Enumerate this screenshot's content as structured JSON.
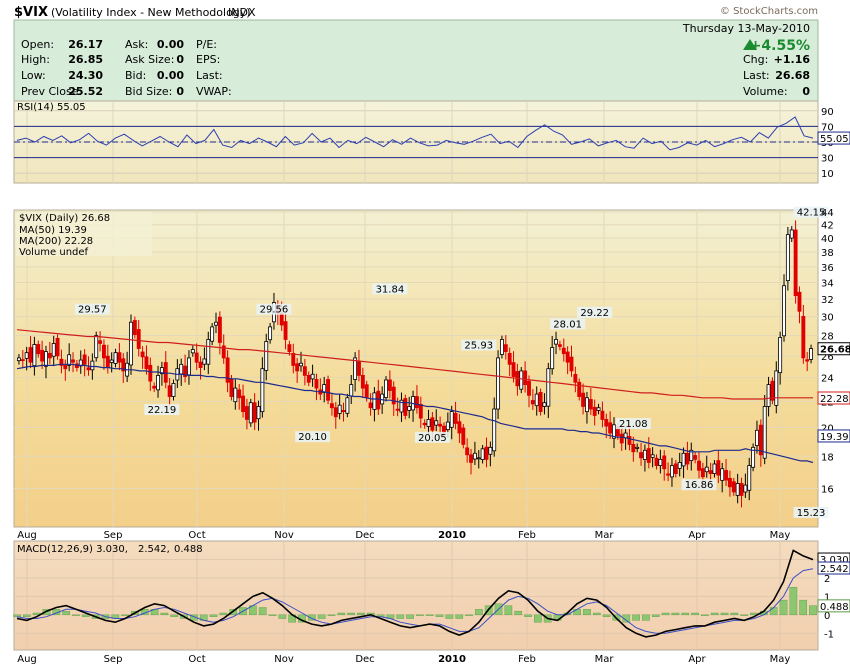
{
  "header": {
    "symbol": "$VIX",
    "description": "(Volatility Index - New Methodology)",
    "exchange": "INDX",
    "brand": "© StockCharts.com",
    "date": "Thursday  13-May-2010",
    "change_pct": "+4.55%"
  },
  "quote": {
    "rows": [
      {
        "l1": "Open:",
        "v1": "26.17",
        "l2": "Ask:",
        "v2": "0.00",
        "l3": "P/E:",
        "v3": ""
      },
      {
        "l1": "High:",
        "v1": "26.85",
        "l2": "Ask Size:",
        "v2": "0",
        "l3": "EPS:",
        "v3": ""
      },
      {
        "l1": "Low:",
        "v1": "24.30",
        "l2": "Bid:",
        "v2": "0.00",
        "l3": "Last:",
        "v3": ""
      },
      {
        "l1": "Prev Close:",
        "v1": "25.52",
        "l2": "Bid Size:",
        "v2": "0",
        "l3": "VWAP:",
        "v3": ""
      }
    ],
    "right": [
      {
        "l": "Chg:",
        "v": "+1.16"
      },
      {
        "l": "Last:",
        "v": "26.68"
      },
      {
        "l": "Volume:",
        "v": "0"
      }
    ]
  },
  "chart_data": {
    "type": "candlestick",
    "months": [
      "Aug",
      "Sep",
      "Oct",
      "Nov",
      "Dec",
      "2010",
      "Feb",
      "Mar",
      "Apr",
      "May"
    ],
    "rsi": {
      "label": "RSI(14) 55.05",
      "last": "55.05",
      "ticks": [
        "90",
        "70",
        "50",
        "30",
        "10"
      ],
      "tick_values": [
        90,
        70,
        50,
        30,
        10
      ],
      "overbought": 70,
      "oversold": 30,
      "ylim": [
        0,
        100
      ],
      "values": [
        52,
        55,
        50,
        57,
        52,
        58,
        49,
        53,
        61,
        51,
        46,
        55,
        60,
        52,
        45,
        51,
        57,
        50,
        44,
        59,
        48,
        52,
        66,
        46,
        43,
        52,
        48,
        55,
        50,
        44,
        57,
        46,
        49,
        61,
        50,
        55,
        43,
        52,
        48,
        56,
        50,
        44,
        53,
        47,
        55,
        49,
        45,
        46,
        52,
        49,
        47,
        51,
        56,
        60,
        48,
        51,
        43,
        57,
        65,
        72,
        64,
        59,
        47,
        50,
        54,
        45,
        49,
        52,
        44,
        42,
        55,
        48,
        51,
        40,
        43,
        49,
        46,
        52,
        44,
        48,
        53,
        56,
        50,
        62,
        55,
        69,
        74,
        82,
        58,
        55
      ]
    },
    "price": {
      "label": "$VIX (Daily) 26.68",
      "ma50_label": "MA(50) 19.39",
      "ma200_label": "MA(200) 22.28",
      "volume_label": "Volume undef",
      "last": "26.68",
      "ma50_last": "19.39",
      "ma200_last": "22.28",
      "ticks": [
        "44",
        "42",
        "40",
        "38",
        "36",
        "34",
        "32",
        "30",
        "28",
        "26",
        "24",
        "22",
        "20",
        "18",
        "16"
      ],
      "tick_values": [
        44,
        42,
        40,
        38,
        36,
        34,
        32,
        30,
        28,
        26,
        24,
        22,
        20,
        18,
        16
      ],
      "ylim": [
        14,
        44
      ],
      "log": true,
      "close": [
        25.8,
        25.6,
        26.3,
        25.4,
        27.1,
        26.2,
        25.5,
        26.4,
        25.8,
        27.2,
        26.0,
        25.1,
        24.8,
        26.1,
        25.4,
        24.9,
        25.6,
        25.2,
        24.7,
        25.5,
        28.0,
        27.2,
        25.8,
        24.9,
        25.6,
        26.3,
        25.4,
        24.6,
        25.3,
        29.4,
        28.1,
        26.7,
        25.9,
        24.8,
        23.7,
        23.1,
        24.2,
        24.9,
        23.6,
        22.4,
        23.5,
        24.8,
        25.2,
        24.1,
        25.8,
        26.6,
        25.4,
        24.9,
        25.7,
        27.6,
        28.9,
        29.4,
        27.3,
        25.8,
        23.6,
        22.4,
        23.1,
        22.3,
        21.2,
        20.6,
        21.9,
        20.4,
        21.6,
        24.8,
        27.4,
        28.9,
        31.6,
        30.4,
        29.1,
        27.6,
        26.4,
        25.1,
        24.6,
        25.3,
        24.2,
        23.6,
        24.3,
        23.1,
        22.6,
        23.4,
        22.1,
        21.5,
        20.8,
        21.7,
        21.2,
        22.3,
        23.4,
        25.8,
        24.2,
        23.1,
        22.3,
        21.5,
        22.7,
        21.4,
        22.6,
        23.8,
        22.9,
        21.8,
        21.3,
        22.1,
        20.9,
        21.6,
        22.4,
        21.5,
        20.7,
        20.2,
        20.6,
        19.8,
        20.5,
        20.1,
        19.6,
        20.4,
        21.2,
        20.3,
        19.6,
        18.8,
        18.1,
        17.6,
        18.2,
        17.9,
        18.5,
        17.8,
        18.6,
        21.4,
        25.8,
        27.6,
        26.4,
        25.2,
        24.1,
        23.3,
        24.6,
        23.4,
        22.5,
        21.8,
        22.6,
        21.2,
        21.9,
        24.8,
        26.8,
        27.6,
        26.9,
        26.2,
        25.4,
        24.6,
        23.6,
        22.4,
        21.6,
        22.3,
        21.4,
        20.9,
        21.5,
        20.6,
        20.1,
        19.6,
        20.2,
        19.4,
        18.9,
        19.6,
        18.8,
        18.3,
        18.6,
        17.9,
        18.4,
        17.6,
        18.1,
        17.4,
        17.8,
        17.2,
        16.8,
        17.4,
        16.9,
        17.6,
        18.2,
        17.5,
        18.4,
        17.8,
        17.1,
        16.7,
        17.3,
        16.9,
        17.5,
        16.8,
        17.2,
        16.5,
        16.1,
        15.8,
        16.3,
        15.6,
        16.2,
        17.4,
        18.6,
        19.8,
        18.1,
        21.6,
        23.4,
        22.1,
        24.6,
        27.8,
        33.6,
        40.5,
        41.2,
        32.4,
        30.6,
        25.8,
        25.5,
        26.7
      ],
      "ma50": [
        24.8,
        24.9,
        25.0,
        25.0,
        25.1,
        25.1,
        25.1,
        25.2,
        25.2,
        25.2,
        25.1,
        25.1,
        25.0,
        25.0,
        24.9,
        24.9,
        24.8,
        24.8,
        24.7,
        24.7,
        24.6,
        24.6,
        24.5,
        24.5,
        24.4,
        24.4,
        24.3,
        24.3,
        24.2,
        24.2,
        24.2,
        24.1,
        24.1,
        24.0,
        24.0,
        23.9,
        23.9,
        23.8,
        23.7,
        23.6,
        23.6,
        23.5,
        23.4,
        23.3,
        23.2,
        23.1,
        23.0,
        22.9,
        22.9,
        22.8,
        22.8,
        22.7,
        22.6,
        22.6,
        22.5,
        22.4,
        22.4,
        22.3,
        22.2,
        22.2,
        22.1,
        22.1,
        22.0,
        21.9,
        21.9,
        21.8,
        21.7,
        21.6,
        21.6,
        21.5,
        21.4,
        21.3,
        21.2,
        21.1,
        21.0,
        20.9,
        20.8,
        20.6,
        20.5,
        20.3,
        20.2,
        20.1,
        20.0,
        19.9,
        19.9,
        19.9,
        19.9,
        19.9,
        19.9,
        19.9,
        19.8,
        19.8,
        19.7,
        19.7,
        19.6,
        19.6,
        19.5,
        19.4,
        19.3,
        19.3,
        19.2,
        19.1,
        19.0,
        18.9,
        18.8,
        18.7,
        18.7,
        18.6,
        18.5,
        18.4,
        18.3,
        18.3,
        18.3,
        18.3,
        18.4,
        18.4,
        18.4,
        18.4,
        18.4,
        18.5,
        18.4,
        18.4,
        18.3,
        18.2,
        18.1,
        18.0,
        17.9,
        17.8,
        17.7,
        17.7,
        17.6
      ],
      "ma200": [
        28.6,
        28.5,
        28.4,
        28.3,
        28.2,
        28.1,
        28.0,
        27.9,
        27.9,
        27.8,
        27.7,
        27.6,
        27.5,
        27.4,
        27.3,
        27.3,
        27.2,
        27.1,
        27.0,
        26.9,
        26.8,
        26.7,
        26.6,
        26.6,
        26.5,
        26.4,
        26.3,
        26.2,
        26.1,
        26.0,
        25.9,
        25.8,
        25.7,
        25.6,
        25.5,
        25.4,
        25.3,
        25.2,
        25.1,
        25.0,
        24.9,
        24.8,
        24.7,
        24.6,
        24.5,
        24.4,
        24.3,
        24.2,
        24.1,
        24.0,
        23.9,
        23.8,
        23.7,
        23.6,
        23.5,
        23.4,
        23.3,
        23.2,
        23.1,
        23.0,
        22.9,
        22.8,
        22.7,
        22.7,
        22.6,
        22.5,
        22.5,
        22.4,
        22.3,
        22.3,
        22.3,
        22.2,
        22.2,
        22.2,
        22.2,
        22.3,
        22.3,
        22.3,
        22.3,
        22.3
      ],
      "annotations": [
        "29.57",
        "22.19",
        "29.56",
        "20.10",
        "31.84",
        "25.93",
        "20.05",
        "16.86",
        "28.01",
        "29.22",
        "21.08",
        "15.23",
        "42.15"
      ]
    },
    "macd": {
      "label_main": "MACD(12,26,9) 3.030,",
      "label_signal": "2.542,",
      "label_hist": "0.488",
      "macd_last": "3.030",
      "signal_last": "2.542",
      "hist_last": "0.488",
      "ticks": [
        "3",
        "2",
        "1",
        "0",
        "-1"
      ],
      "tick_values": [
        3,
        2,
        1,
        0,
        -1
      ],
      "ylim": [
        -1.8,
        3.9
      ],
      "macd": [
        -0.2,
        -0.3,
        -0.1,
        0.2,
        0.4,
        0.5,
        0.3,
        0.1,
        -0.1,
        -0.3,
        -0.4,
        -0.2,
        0.1,
        0.4,
        0.6,
        0.5,
        0.2,
        -0.1,
        -0.4,
        -0.6,
        -0.5,
        -0.2,
        0.2,
        0.6,
        1.0,
        1.2,
        0.9,
        0.5,
        0.0,
        -0.3,
        -0.5,
        -0.6,
        -0.5,
        -0.3,
        -0.2,
        -0.1,
        0.0,
        -0.2,
        -0.4,
        -0.6,
        -0.7,
        -0.6,
        -0.5,
        -0.6,
        -0.9,
        -1.1,
        -0.9,
        -0.4,
        0.3,
        0.9,
        1.3,
        1.2,
        0.8,
        0.2,
        -0.2,
        -0.3,
        0.1,
        0.6,
        0.9,
        0.8,
        0.4,
        -0.2,
        -0.7,
        -1.0,
        -1.2,
        -1.1,
        -0.9,
        -0.8,
        -0.7,
        -0.6,
        -0.6,
        -0.4,
        -0.3,
        -0.2,
        -0.3,
        -0.1,
        0.2,
        0.8,
        1.8,
        3.5,
        3.2,
        3.0
      ],
      "signal": [
        -0.1,
        -0.2,
        -0.2,
        -0.1,
        0.1,
        0.3,
        0.3,
        0.2,
        0.1,
        -0.1,
        -0.2,
        -0.2,
        -0.1,
        0.1,
        0.3,
        0.4,
        0.3,
        0.1,
        -0.1,
        -0.3,
        -0.4,
        -0.3,
        -0.1,
        0.2,
        0.5,
        0.8,
        0.9,
        0.7,
        0.4,
        0.1,
        -0.2,
        -0.4,
        -0.5,
        -0.4,
        -0.3,
        -0.2,
        -0.1,
        -0.1,
        -0.2,
        -0.4,
        -0.5,
        -0.6,
        -0.5,
        -0.5,
        -0.7,
        -0.9,
        -0.9,
        -0.7,
        -0.2,
        0.3,
        0.8,
        1.0,
        0.9,
        0.6,
        0.2,
        0.0,
        0.0,
        0.3,
        0.6,
        0.7,
        0.5,
        0.1,
        -0.3,
        -0.7,
        -0.9,
        -1.0,
        -1.0,
        -0.9,
        -0.8,
        -0.7,
        -0.6,
        -0.5,
        -0.4,
        -0.3,
        -0.3,
        -0.2,
        0.0,
        0.4,
        1.0,
        2.0,
        2.4,
        2.5
      ]
    }
  }
}
